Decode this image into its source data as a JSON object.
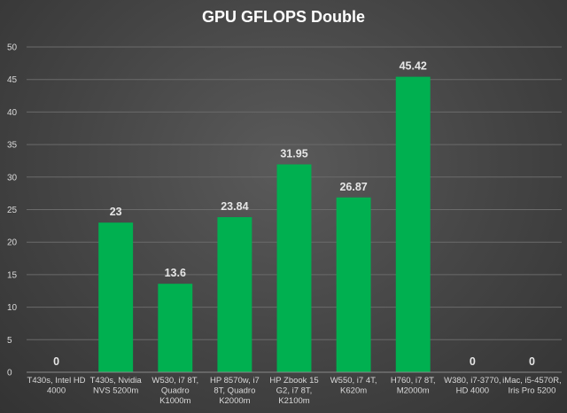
{
  "chart_data": {
    "type": "bar",
    "title": "GPU GFLOPS Double",
    "xlabel": "",
    "ylabel": "",
    "ylim": [
      0,
      50
    ],
    "yticks": [
      0,
      5,
      10,
      15,
      20,
      25,
      30,
      35,
      40,
      45,
      50
    ],
    "grid": true,
    "legend": "none",
    "bar_color": "#00b050",
    "categories": [
      [
        "T430s, Intel HD",
        "4000"
      ],
      [
        "T430s, Nvidia",
        "NVS 5200m"
      ],
      [
        "W530, i7 8T,",
        "Quadro",
        "K1000m"
      ],
      [
        "HP 8570w, i7",
        "8T, Quadro",
        "K2000m"
      ],
      [
        "HP Zbook 15",
        "G2, i7 8T,",
        "K2100m"
      ],
      [
        "W550, i7 4T,",
        "K620m"
      ],
      [
        "H760, i7 8T,",
        "M2000m"
      ],
      [
        "W380, i7-3770,",
        "HD 4000"
      ],
      [
        "iMac, i5-4570R,",
        "Iris Pro 5200"
      ]
    ],
    "values": [
      0,
      23,
      13.6,
      23.84,
      31.95,
      26.87,
      45.42,
      0,
      0
    ],
    "data_labels": [
      "0",
      "23",
      "13.6",
      "23.84",
      "31.95",
      "26.87",
      "45.42",
      "0",
      "0"
    ]
  }
}
